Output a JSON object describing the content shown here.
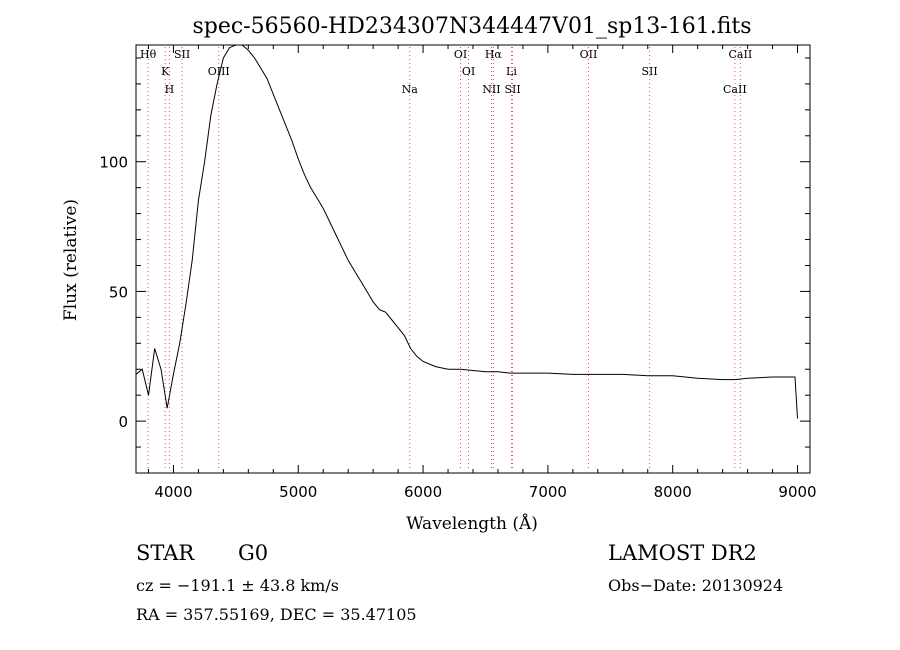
{
  "chart_data": {
    "type": "line",
    "title": "spec-56560-HD234307N344447V01_sp13-161.fits",
    "xlabel": "Wavelength (Å)",
    "ylabel": "Flux (relative)",
    "xlim": [
      3700,
      9100
    ],
    "ylim": [
      -20,
      145
    ],
    "x_ticks": [
      4000,
      5000,
      6000,
      7000,
      8000,
      9000
    ],
    "y_ticks": [
      0,
      50,
      100
    ],
    "grid": false,
    "series": [
      {
        "x": [
          3700,
          3750,
          3800,
          3850,
          3900,
          3950,
          4000,
          4050,
          4100,
          4150,
          4200,
          4250,
          4300,
          4350,
          4400,
          4450,
          4500,
          4550,
          4600,
          4650,
          4700,
          4750,
          4800,
          4850,
          4900,
          4950,
          5000,
          5050,
          5100,
          5150,
          5200,
          5250,
          5300,
          5350,
          5400,
          5450,
          5500,
          5550,
          5600,
          5650,
          5700,
          5750,
          5800,
          5850,
          5900,
          5950,
          6000,
          6100,
          6200,
          6300,
          6400,
          6500,
          6600,
          6700,
          6800,
          6900,
          7000,
          7200,
          7400,
          7600,
          7800,
          8000,
          8200,
          8400,
          8500,
          8600,
          8800,
          8950,
          8980,
          9000
        ],
        "y": [
          18,
          20,
          10,
          28,
          20,
          5,
          18,
          30,
          45,
          62,
          85,
          100,
          118,
          130,
          140,
          144,
          146,
          145,
          143,
          140,
          136,
          132,
          126,
          120,
          114,
          108,
          101,
          95,
          90,
          86,
          82,
          77,
          72,
          67,
          62,
          58,
          54,
          50,
          46,
          43,
          42,
          39,
          36,
          33,
          28,
          25,
          23,
          21,
          20,
          20,
          19.5,
          19,
          19,
          18.5,
          18.5,
          18.5,
          18.5,
          18,
          18,
          18,
          17.5,
          17.5,
          16.5,
          16,
          16,
          16.5,
          17,
          17,
          17,
          1
        ]
      }
    ],
    "lines": [
      {
        "label": "Hθ",
        "wavelength": 3797
      },
      {
        "label": "K",
        "wavelength": 3934
      },
      {
        "label": "H",
        "wavelength": 3968
      },
      {
        "label": "SII",
        "wavelength": 4069
      },
      {
        "label": "OIII",
        "wavelength": 4363
      },
      {
        "label": "Na",
        "wavelength": 5893
      },
      {
        "label": "OI",
        "wavelength": 6300
      },
      {
        "label": "OI",
        "wavelength": 6364
      },
      {
        "label": "NII",
        "wavelength": 6548
      },
      {
        "label": "Hα",
        "wavelength": 6563
      },
      {
        "label": "Li",
        "wavelength": 6708
      },
      {
        "label": "SII",
        "wavelength": 6717
      },
      {
        "label": "OII",
        "wavelength": 7325
      },
      {
        "label": "SII",
        "wavelength": 7815
      },
      {
        "label": "CaII",
        "wavelength": 8498
      },
      {
        "label": "CaII",
        "wavelength": 8542
      }
    ]
  },
  "info": {
    "class": "STAR",
    "subclass": "G0",
    "survey": "LAMOST DR2",
    "cz": "cz = −191.1 ± 43.8 km/s",
    "obs_date": "Obs−Date: 20130924",
    "coords": "RA = 357.55169, DEC =  35.47105"
  },
  "colors": {
    "line": "#000000",
    "marker": "#e05050",
    "background": "#ffffff"
  }
}
